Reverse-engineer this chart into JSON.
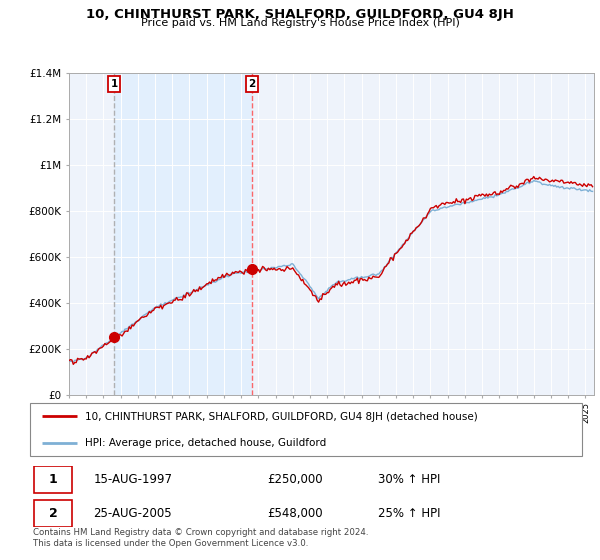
{
  "title": "10, CHINTHURST PARK, SHALFORD, GUILDFORD, GU4 8JH",
  "subtitle": "Price paid vs. HM Land Registry's House Price Index (HPI)",
  "property_label": "10, CHINTHURST PARK, SHALFORD, GUILDFORD, GU4 8JH (detached house)",
  "hpi_label": "HPI: Average price, detached house, Guildford",
  "sale1_date": "15-AUG-1997",
  "sale1_price": "£250,000",
  "sale1_hpi": "30% ↑ HPI",
  "sale2_date": "25-AUG-2005",
  "sale2_price": "£548,000",
  "sale2_hpi": "25% ↑ HPI",
  "footer": "Contains HM Land Registry data © Crown copyright and database right 2024.\nThis data is licensed under the Open Government Licence v3.0.",
  "property_color": "#cc0000",
  "hpi_color": "#7eb0d5",
  "shade_color": "#ddeeff",
  "background_color": "#eef3fb",
  "ylim": [
    0,
    1400000
  ],
  "yticks": [
    0,
    200000,
    400000,
    600000,
    800000,
    1000000,
    1200000,
    1400000
  ],
  "ytick_labels": [
    "£0",
    "£200K",
    "£400K",
    "£600K",
    "£800K",
    "£1M",
    "£1.2M",
    "£1.4M"
  ],
  "sale1_year": 1997.625,
  "sale1_value": 250000,
  "sale2_year": 2005.625,
  "sale2_value": 548000,
  "xlim_left": 1995.0,
  "xlim_right": 2025.5
}
